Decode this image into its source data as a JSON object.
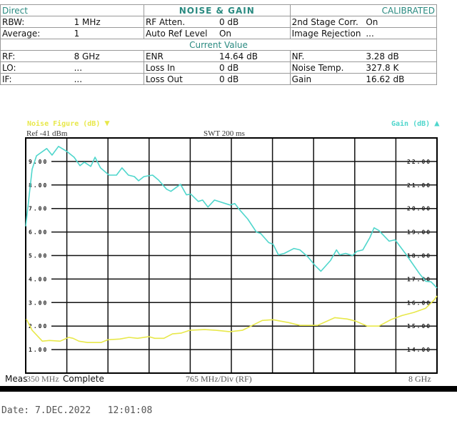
{
  "header": {
    "mode": "Direct",
    "title": "NOISE & GAIN",
    "status": "CALIBRATED",
    "section": "Current Value"
  },
  "settings": [
    [
      {
        "label": "RBW:",
        "value": "1 MHz"
      },
      {
        "label": "RF Atten.",
        "value": "0 dB"
      },
      {
        "label": "2nd Stage Corr.",
        "value": "On"
      }
    ],
    [
      {
        "label": "Average:",
        "value": "1"
      },
      {
        "label": "Auto Ref Level",
        "value": "On"
      },
      {
        "label": "Image Rejection",
        "value": "..."
      }
    ]
  ],
  "current": [
    [
      {
        "label": "RF:",
        "value": "8 GHz"
      },
      {
        "label": "ENR",
        "value": "14.64 dB"
      },
      {
        "label": "NF.",
        "value": "3.28 dB"
      }
    ],
    [
      {
        "label": "LO:",
        "value": "..."
      },
      {
        "label": "Loss In",
        "value": "0 dB"
      },
      {
        "label": "Noise Temp.",
        "value": "327.8 K"
      }
    ],
    [
      {
        "label": "IF:",
        "value": "..."
      },
      {
        "label": "Loss Out",
        "value": "0 dB"
      },
      {
        "label": "Gain",
        "value": "16.62 dB"
      }
    ]
  ],
  "chart_labels": {
    "ref": "Ref -41 dBm",
    "swt": "SWT 200 ms",
    "meas": "Meas",
    "start": "350 MHz",
    "complete": "Complete",
    "div": "765 MHz/Div (RF)",
    "stop": "8 GHz",
    "date": "Date: 7.DEC.2022   12:01:08"
  },
  "chart_data": {
    "type": "line",
    "xlabel": "",
    "xlim": [
      0.35,
      8.0
    ],
    "x_unit": "GHz",
    "grid": true,
    "y_left": {
      "label": "Noise Figure (dB)",
      "marker": "▼",
      "lim": [
        0,
        10
      ],
      "ticks": [
        "9.00",
        "8.00",
        "7.00",
        "6.00",
        "5.00",
        "4.00",
        "3.00",
        "2.00",
        "1.00"
      ],
      "color": "#e8e84a"
    },
    "y_right": {
      "label": "Gain (dB)",
      "marker": "▲",
      "lim": [
        13,
        23
      ],
      "ticks": [
        "22.00",
        "21.00",
        "20.00",
        "19.00",
        "18.00",
        "17.00",
        "16.00",
        "15.00",
        "14.00"
      ],
      "color": "#4fd6cc"
    },
    "series": [
      {
        "name": "Noise Figure (dB)",
        "axis": "left",
        "color": "#e8e84a",
        "x": [
          0.36,
          0.47,
          0.66,
          0.79,
          0.99,
          1.15,
          1.23,
          1.34,
          1.5,
          1.75,
          1.88,
          2.1,
          2.27,
          2.43,
          2.64,
          2.75,
          2.92,
          3.08,
          3.24,
          3.4,
          3.68,
          3.89,
          4.15,
          4.38,
          4.54,
          4.75,
          4.95,
          5.24,
          5.45,
          5.78,
          6.1,
          6.33,
          6.49,
          6.7,
          6.92,
          7.14,
          7.35,
          7.57,
          7.79,
          7.95,
          8.0
        ],
        "y": [
          2.3,
          1.82,
          1.36,
          1.39,
          1.36,
          1.52,
          1.48,
          1.36,
          1.3,
          1.3,
          1.42,
          1.45,
          1.52,
          1.48,
          1.55,
          1.48,
          1.48,
          1.67,
          1.7,
          1.82,
          1.85,
          1.82,
          1.76,
          1.82,
          2.0,
          2.24,
          2.27,
          2.15,
          2.03,
          2.03,
          2.36,
          2.3,
          2.21,
          2.0,
          2.0,
          2.27,
          2.45,
          2.58,
          2.76,
          3.12,
          3.28
        ]
      },
      {
        "name": "Gain (dB)",
        "axis": "right",
        "color": "#4fd6cc",
        "x": [
          0.35,
          0.47,
          0.55,
          0.74,
          0.84,
          0.96,
          1.12,
          1.25,
          1.36,
          1.44,
          1.56,
          1.64,
          1.74,
          1.9,
          2.04,
          2.14,
          2.26,
          2.37,
          2.45,
          2.55,
          2.71,
          2.82,
          2.97,
          3.05,
          3.23,
          3.34,
          3.42,
          3.56,
          3.64,
          3.74,
          3.86,
          4.15,
          4.24,
          4.32,
          4.48,
          4.64,
          4.72,
          4.87,
          4.95,
          5.05,
          5.16,
          5.34,
          5.45,
          5.6,
          5.73,
          5.84,
          6.02,
          6.13,
          6.19,
          6.3,
          6.43,
          6.51,
          6.62,
          6.75,
          6.83,
          6.92,
          7.11,
          7.22,
          7.43,
          7.68,
          7.79,
          7.89,
          8.0
        ],
        "y": [
          19.24,
          21.67,
          22.24,
          22.55,
          22.27,
          22.64,
          22.42,
          22.18,
          21.82,
          21.97,
          21.79,
          22.18,
          21.73,
          21.42,
          21.42,
          21.73,
          21.42,
          21.36,
          21.18,
          21.36,
          21.42,
          21.21,
          20.82,
          20.73,
          21.03,
          20.58,
          20.61,
          20.3,
          20.36,
          20.06,
          20.36,
          20.15,
          20.21,
          19.97,
          19.55,
          19.0,
          18.94,
          18.55,
          18.48,
          18.03,
          18.09,
          18.3,
          18.24,
          17.94,
          17.58,
          17.33,
          17.79,
          18.24,
          18.03,
          18.09,
          18.0,
          18.18,
          18.24,
          18.76,
          19.18,
          19.06,
          18.61,
          18.67,
          18.03,
          17.21,
          16.91,
          16.88,
          16.62
        ]
      }
    ]
  }
}
